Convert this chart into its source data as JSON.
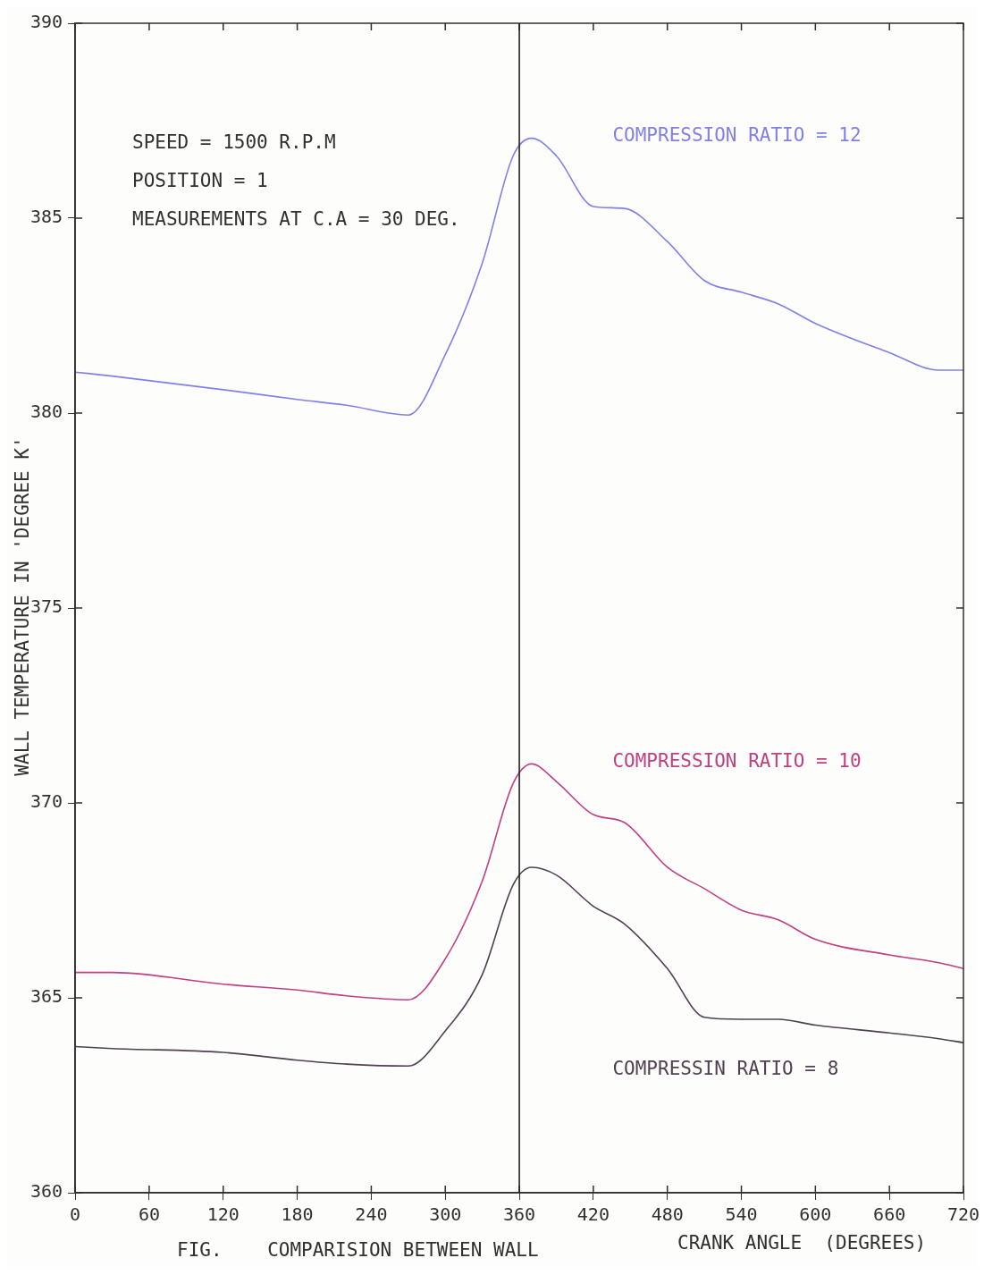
{
  "chart_data": {
    "type": "line",
    "xlabel": "CRANK ANGLE  (DEGREES)",
    "ylabel": "WALL TEMPERATURE IN 'DEGREE K'",
    "annotations": [
      "SPEED = 1500 R.P.M",
      "POSITION = 1",
      "MEASUREMENTS AT C.A = 30 DEG.",
      "FIG.    COMPARISION BETWEEN WALL"
    ],
    "x": [
      0,
      30,
      120,
      180,
      220,
      270,
      300,
      330,
      355,
      370,
      390,
      420,
      445,
      480,
      510,
      540,
      570,
      600,
      660,
      700,
      720
    ],
    "series": [
      {
        "name": "COMPRESSION RATIO = 12",
        "color": "#8080e8",
        "values": [
          381.05,
          380.95,
          380.6,
          380.35,
          380.2,
          379.95,
          381.5,
          383.85,
          386.6,
          387.05,
          386.6,
          385.3,
          385.25,
          384.4,
          383.4,
          383.1,
          382.8,
          382.3,
          381.55,
          381.1,
          381.1
        ]
      },
      {
        "name": "COMPRESSION RATIO = 10",
        "color": "#c04080",
        "values": [
          365.65,
          365.65,
          365.35,
          365.2,
          365.05,
          364.95,
          366.0,
          368.0,
          370.5,
          371.0,
          370.55,
          369.7,
          369.5,
          368.35,
          367.8,
          367.25,
          367.0,
          366.5,
          366.1,
          365.9,
          365.75
        ]
      },
      {
        "name": "COMPRESSIN RATIO = 8",
        "color": "#504050",
        "values": [
          363.75,
          363.7,
          363.6,
          363.4,
          363.3,
          363.25,
          364.15,
          365.6,
          367.9,
          368.35,
          368.15,
          367.35,
          366.9,
          365.75,
          364.5,
          364.45,
          364.45,
          364.3,
          364.1,
          363.95,
          363.85
        ]
      }
    ],
    "xlim": [
      0,
      720
    ],
    "xticks": [
      0,
      60,
      120,
      180,
      240,
      300,
      360,
      420,
      480,
      540,
      600,
      660,
      720
    ],
    "ylim": [
      360,
      390
    ],
    "yticks": [
      360,
      365,
      370,
      375,
      380,
      385,
      390
    ],
    "ref_lines": [
      {
        "axis": "x",
        "value": 360,
        "color": "#202020"
      }
    ],
    "grid": false,
    "legend": false,
    "marker": "none",
    "line_style": "solid"
  }
}
